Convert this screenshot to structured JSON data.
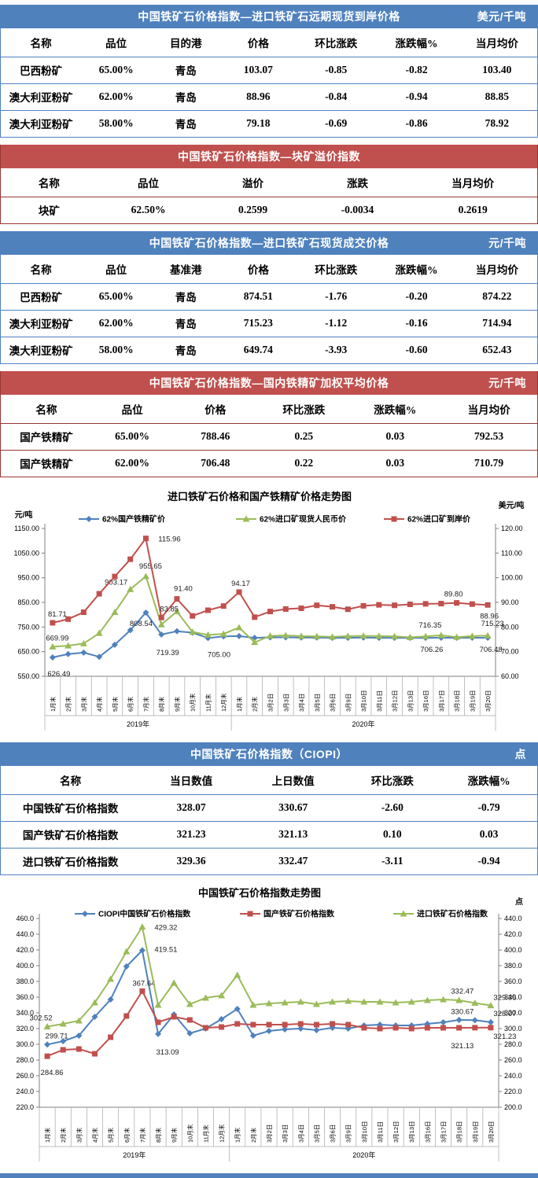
{
  "colors": {
    "blue": "#4f81bd",
    "red": "#c0504d",
    "green": "#9bbb59",
    "maroon": "#953735"
  },
  "tables": [
    {
      "id": "forward-cfr",
      "theme": "blue",
      "title": "中国铁矿石价格指数—进口铁矿石远期现货到岸价格",
      "unit": "美元/千吨",
      "columns": [
        "名称",
        "品位",
        "目的港",
        "价格",
        "环比涨跌",
        "涨跌幅%",
        "当月均价"
      ],
      "rows": [
        [
          "巴西粉矿",
          "65.00%",
          "青岛",
          "103.07",
          "-0.85",
          "-0.82",
          "103.40"
        ],
        [
          "澳大利亚粉矿",
          "62.00%",
          "青岛",
          "88.96",
          "-0.84",
          "-0.94",
          "88.85"
        ],
        [
          "澳大利亚粉矿",
          "58.00%",
          "青岛",
          "79.18",
          "-0.69",
          "-0.86",
          "78.92"
        ]
      ]
    },
    {
      "id": "lump-premium",
      "theme": "red",
      "title": "中国铁矿石价格指数—块矿溢价指数",
      "unit": "",
      "columns": [
        "名称",
        "品位",
        "溢价",
        "涨跌",
        "当月均价"
      ],
      "rows": [
        [
          "块矿",
          "62.50%",
          "0.2599",
          "-0.0034",
          "0.2619"
        ]
      ]
    },
    {
      "id": "import-spot",
      "theme": "blue",
      "title": "中国铁矿石价格指数—进口铁矿石现货成交价格",
      "unit": "元/千吨",
      "columns": [
        "名称",
        "品位",
        "基准港",
        "价格",
        "环比涨跌",
        "涨跌幅%",
        "当月均价"
      ],
      "rows": [
        [
          "巴西粉矿",
          "65.00%",
          "青岛",
          "874.51",
          "-1.76",
          "-0.20",
          "874.22"
        ],
        [
          "澳大利亚粉矿",
          "62.00%",
          "青岛",
          "715.23",
          "-1.12",
          "-0.16",
          "714.94"
        ],
        [
          "澳大利亚粉矿",
          "58.00%",
          "青岛",
          "649.74",
          "-3.93",
          "-0.60",
          "652.43"
        ]
      ]
    },
    {
      "id": "domestic-concentrate",
      "theme": "red",
      "title": "中国铁矿石价格指数—国内铁精矿加权平均价格",
      "unit": "元/千吨",
      "columns": [
        "名称",
        "品位",
        "价格",
        "环比涨跌",
        "涨跌幅%",
        "当月均价"
      ],
      "rows": [
        [
          "国产铁精矿",
          "65.00%",
          "788.46",
          "0.25",
          "0.03",
          "792.53"
        ],
        [
          "国产铁精矿",
          "62.00%",
          "706.48",
          "0.22",
          "0.03",
          "710.79"
        ]
      ]
    },
    {
      "id": "ciopi",
      "theme": "blue",
      "title": "中国铁矿石价格指数（CIOPI）",
      "unit": "点",
      "columns": [
        "名称",
        "当日数值",
        "上日数值",
        "环比涨跌",
        "涨跌幅%"
      ],
      "rows": [
        [
          "中国铁矿石价格指数",
          "328.07",
          "330.67",
          "-2.60",
          "-0.79"
        ],
        [
          "国产铁矿石价格指数",
          "321.23",
          "321.13",
          "0.10",
          "0.03"
        ],
        [
          "进口铁矿石价格指数",
          "329.36",
          "332.47",
          "-3.11",
          "-0.94"
        ]
      ]
    }
  ],
  "chart_data": [
    {
      "type": "line",
      "name": "import-vs-domestic-price-trend",
      "title": "进口铁矿石价格和国产铁精矿价格走势图",
      "left_axis": {
        "label": "元/吨",
        "min": 550,
        "max": 1150,
        "step": 100,
        "decimals": 2
      },
      "right_axis": {
        "label": "美元/吨",
        "min": 60,
        "max": 120,
        "step": 10,
        "decimals": 2
      },
      "categories": [
        "1月末",
        "2月末",
        "3月末",
        "4月末",
        "5月末",
        "6月末",
        "7月末",
        "8月末",
        "9月末",
        "10月末",
        "11月末",
        "12月末",
        "1月末",
        "2月末",
        "3月2日",
        "3月3日",
        "3月4日",
        "3月5日",
        "3月6日",
        "3月9日",
        "3月10日",
        "3月11日",
        "3月12日",
        "3月13日",
        "3月16日",
        "3月17日",
        "3月18日",
        "3月19日",
        "3月20日"
      ],
      "x_groups": [
        {
          "label": "2019年",
          "count": 12
        },
        {
          "label": "2020年",
          "count": 17
        }
      ],
      "legend_position": "top",
      "grid": false,
      "series": [
        {
          "name": "62%国产铁精矿价",
          "color": "#4f81bd",
          "marker": "diamond",
          "axis": "left",
          "values": [
            626.49,
            640,
            646,
            629,
            678,
            737,
            808.54,
            719.39,
            733,
            727,
            705,
            712,
            713,
            706,
            708,
            708,
            707,
            707,
            706,
            706,
            707,
            706,
            706,
            706,
            706,
            706.26,
            706.35,
            706.4,
            706.48
          ],
          "labels": [
            [
              0,
              8,
              24
            ],
            [
              6,
              -6,
              17
            ],
            [
              7,
              8,
              26
            ],
            [
              10,
              14,
              24
            ],
            [
              25,
              -12,
              18
            ],
            [
              28,
              4,
              18
            ]
          ]
        },
        {
          "name": "62%进口矿现货人民币价",
          "color": "#9bbb59",
          "marker": "triangle",
          "axis": "left",
          "values": [
            669.99,
            674,
            683,
            725,
            810,
            903.17,
            955.65,
            760,
            813,
            730,
            718,
            722,
            748,
            688,
            714,
            716,
            713,
            712,
            710,
            713,
            714,
            713,
            712,
            708,
            712,
            716.35,
            709,
            713,
            715.23
          ],
          "labels": [
            [
              0,
              6,
              -8
            ],
            [
              5,
              -18,
              -6
            ],
            [
              6,
              6,
              -10
            ],
            [
              25,
              -14,
              -10
            ],
            [
              28,
              6,
              -12
            ]
          ]
        },
        {
          "name": "62%进口矿到岸价",
          "color": "#c0504d",
          "marker": "square",
          "axis": "right",
          "values": [
            81.71,
            83.2,
            86,
            93.5,
            100.5,
            107.5,
            115.96,
            83.85,
            91.4,
            84.5,
            86.8,
            88.5,
            94.17,
            84,
            86.3,
            87.3,
            87.6,
            88.8,
            88.2,
            87.2,
            88.6,
            89,
            88.8,
            89.2,
            89.4,
            89.5,
            89.8,
            89.3,
            88.96
          ],
          "labels": [
            [
              0,
              6,
              -8
            ],
            [
              6,
              30,
              4
            ],
            [
              7,
              10,
              -8
            ],
            [
              8,
              8,
              -10
            ],
            [
              12,
              2,
              -8
            ],
            [
              26,
              -4,
              -8
            ],
            [
              28,
              2,
              17
            ]
          ]
        }
      ]
    },
    {
      "type": "line",
      "name": "ciopi-index-trend",
      "title": "中国铁矿石价格指数走势图",
      "left_axis": {
        "label": "",
        "min": 220,
        "max": 460,
        "step": 20,
        "decimals": 1
      },
      "right_axis": {
        "label": "点",
        "min": 200,
        "max": 440,
        "step": 20,
        "decimals": 1
      },
      "categories": [
        "1月末",
        "2月末",
        "3月末",
        "4月末",
        "5月末",
        "6月末",
        "7月末",
        "8月末",
        "9月末",
        "10月末",
        "11月末",
        "12月末",
        "1月末",
        "2月末",
        "3月2日",
        "3月3日",
        "3月4日",
        "3月5日",
        "3月6日",
        "3月9日",
        "3月10日",
        "3月11日",
        "3月12日",
        "3月13日",
        "3月16日",
        "3月17日",
        "3月18日",
        "3月19日",
        "3月20日"
      ],
      "x_groups": [
        {
          "label": "2019年",
          "count": 12
        },
        {
          "label": "2020年",
          "count": 17
        }
      ],
      "legend_position": "top",
      "grid": false,
      "series": [
        {
          "name": "CIOPI中国铁矿石价格指数",
          "color": "#4f81bd",
          "marker": "diamond",
          "axis": "left",
          "values": [
            299.71,
            304,
            311,
            335,
            357,
            399,
            419.51,
            313.09,
            338,
            314,
            320,
            332,
            345,
            311,
            317,
            319,
            320,
            318,
            321,
            320,
            324,
            325,
            324,
            324,
            326,
            328,
            331,
            330.67,
            328.07
          ],
          "labels": [
            [
              0,
              12,
              -8
            ],
            [
              6,
              30,
              2
            ],
            [
              7,
              12,
              26
            ],
            [
              27,
              -16,
              -8
            ],
            [
              28,
              18,
              -8
            ]
          ]
        },
        {
          "name": "国产铁矿石价格指数",
          "color": "#c0504d",
          "marker": "square",
          "axis": "left",
          "values": [
            284.86,
            293,
            294,
            288,
            309,
            336,
            367.64,
            328,
            335,
            331,
            321,
            322,
            326,
            325,
            325,
            325,
            326,
            325,
            326,
            325,
            321,
            320,
            321,
            320,
            321,
            321,
            321,
            321.13,
            321.23
          ],
          "labels": [
            [
              0,
              6,
              24
            ],
            [
              6,
              2,
              -7
            ],
            [
              27,
              -16,
              26
            ],
            [
              28,
              18,
              14
            ]
          ]
        },
        {
          "name": "进口铁矿石价格指数",
          "color": "#9bbb59",
          "marker": "triangle",
          "axis": "right",
          "values": [
            302.52,
            306,
            310,
            333,
            363,
            398,
            429.32,
            330,
            358,
            331,
            339,
            342,
            368,
            330,
            332,
            333,
            334,
            331,
            334,
            335,
            334,
            334,
            333,
            334,
            336,
            337,
            336,
            332.47,
            329.36
          ],
          "labels": [
            [
              0,
              -8,
              -8
            ],
            [
              6,
              30,
              4
            ],
            [
              27,
              -16,
              -12
            ],
            [
              28,
              18,
              -7
            ]
          ]
        }
      ]
    }
  ]
}
